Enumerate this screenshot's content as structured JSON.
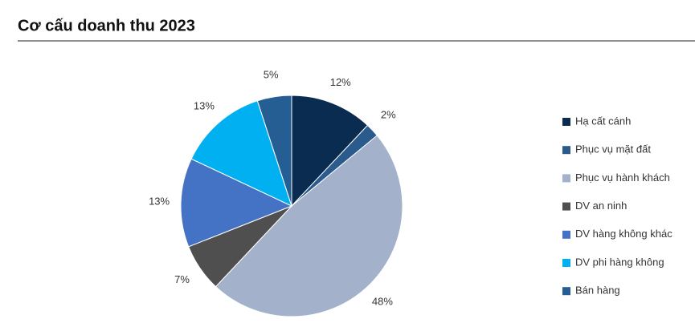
{
  "chart_data": {
    "type": "pie",
    "title": "Cơ cấu doanh thu 2023",
    "categories": [
      "Hạ cất cánh",
      "Phục vụ mặt đất",
      "Phục vụ hành khách",
      "DV an ninh",
      "DV hàng không khác",
      "DV phi hàng không",
      "Bán hàng"
    ],
    "values": [
      12,
      2,
      48,
      7,
      13,
      13,
      5
    ],
    "value_labels": [
      "12%",
      "2%",
      "48%",
      "7%",
      "13%",
      "13%",
      "5%"
    ],
    "colors": [
      "#0b2c51",
      "#2a5b8c",
      "#a3b2ca",
      "#4f4f4f",
      "#4472c4",
      "#00b0f0",
      "#255e92"
    ],
    "legend": "right"
  }
}
